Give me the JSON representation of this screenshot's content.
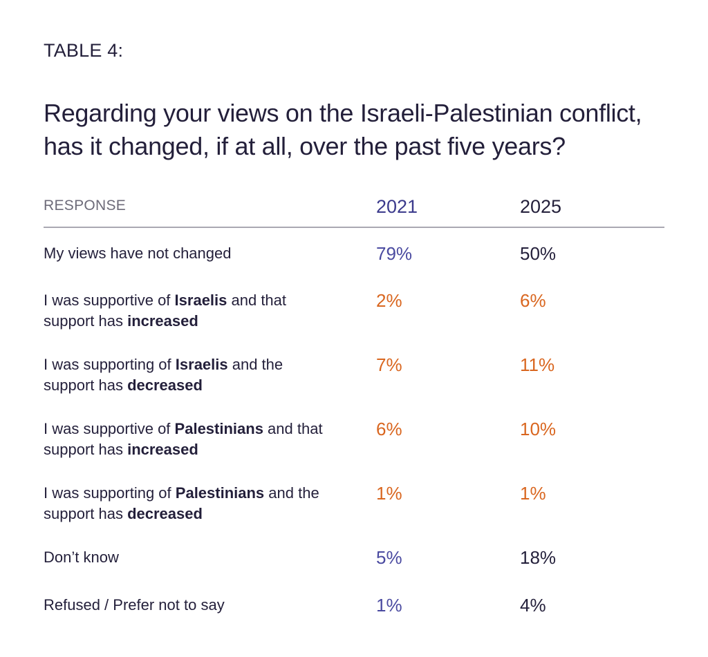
{
  "label": "TABLE 4:",
  "title_line1": "Regarding your views on the Israeli-Palestinian conflict,",
  "title_line2": "has it changed, if at all, over the past five years?",
  "header": {
    "response": "RESPONSE",
    "year1": "2021",
    "year2": "2025"
  },
  "rows": [
    {
      "l1a": "My views have not changed",
      "v2021": "79%",
      "v2025": "50%"
    },
    {
      "l1a": "I was supportive of ",
      "l1b": "Israelis",
      "l1c": " and that",
      "l2a": "support has ",
      "l2b": "increased",
      "v2021": "2%",
      "v2025": "6%"
    },
    {
      "l1a": "I was supporting of ",
      "l1b": "Israelis",
      "l1c": " and the",
      "l2a": "support has ",
      "l2b": "decreased",
      "v2021": "7%",
      "v2025": "11%"
    },
    {
      "l1a": "I was supportive of ",
      "l1b": "Palestinians",
      "l1c": " and that",
      "l2a": "support has ",
      "l2b": "increased",
      "v2021": "6%",
      "v2025": "10%"
    },
    {
      "l1a": "I was supporting of ",
      "l1b": "Palestinians",
      "l1c": " and the",
      "l2a": "support has ",
      "l2b": "decreased",
      "v2021": "1%",
      "v2025": "1%"
    },
    {
      "l1a": "Don’t know",
      "v2021": "5%",
      "v2025": "18%"
    },
    {
      "l1a": "Refused / Prefer not to say",
      "v2021": "1%",
      "v2025": "4%"
    }
  ],
  "colors": {
    "dark": "#231f3a",
    "blue": "#4a4aa0",
    "orange": "#d9661f",
    "rule": "#aaa8b2"
  }
}
